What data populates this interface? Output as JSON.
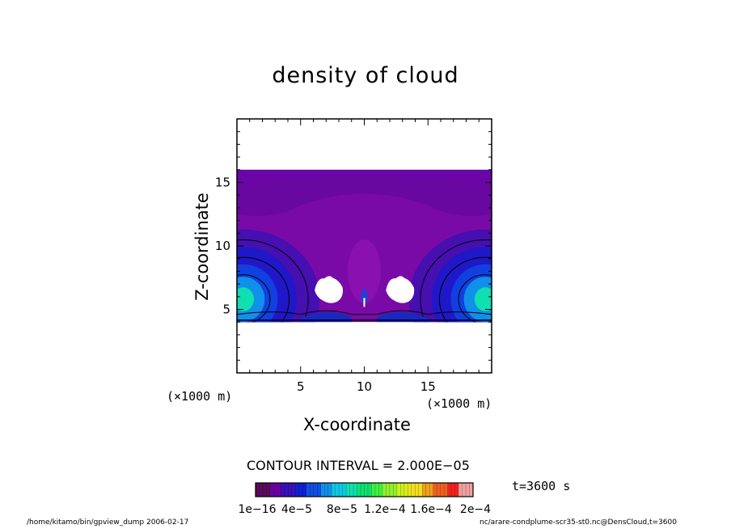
{
  "chart_data": {
    "type": "heatmap",
    "title": "density of cloud",
    "xlabel": "X-coordinate",
    "ylabel": "Z-coordinate",
    "x_unit": "(×1000 m)",
    "xlim": [
      0,
      20
    ],
    "ylim": [
      0,
      20
    ],
    "x_ticks": [
      5,
      10,
      15
    ],
    "y_ticks": [
      5,
      10,
      15
    ],
    "data_z_range": [
      4,
      16
    ],
    "contour_interval": "CONTOUR INTERVAL = 2.000E−05",
    "time_label": "t=3600 s",
    "colorbar": {
      "min": 1e-16,
      "max": 0.0002,
      "tick_labels": [
        "1e−16",
        "4e−5",
        "8e−5",
        "1.2e−4",
        "1.6e−4",
        "2e−4"
      ],
      "colors": [
        "#5a0a5a",
        "#6a00a0",
        "#3a10b8",
        "#1020d0",
        "#1050e0",
        "#1090e8",
        "#10c8e0",
        "#10e0b0",
        "#10e070",
        "#40f040",
        "#90f030",
        "#d0f020",
        "#f0e020",
        "#f0a020",
        "#f06020",
        "#f02020",
        "#f0a0a0"
      ]
    },
    "features": [
      {
        "label": "left edge maximum",
        "x": 0.5,
        "z": 5.8
      },
      {
        "label": "right edge maximum",
        "x": 19.5,
        "z": 5.8
      },
      {
        "label": "left cloud-free hole",
        "x": 7.2,
        "z": 6.5
      },
      {
        "label": "right cloud-free hole",
        "x": 12.8,
        "z": 6.5
      }
    ]
  },
  "footer": {
    "left": "/home/kitamo/bin/gpview_dump  2006-02-17",
    "right": "nc/arare-condplume-scr35-st0.nc@DensCloud,t=3600"
  }
}
